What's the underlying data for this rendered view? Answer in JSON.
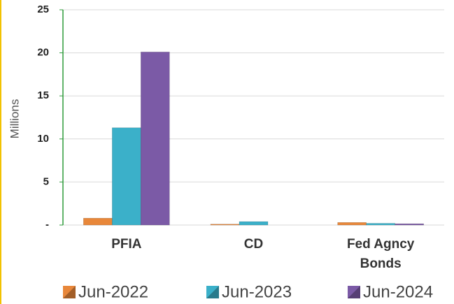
{
  "chart_data": {
    "type": "bar",
    "y_label": "Millions",
    "categories": [
      "PFIA",
      "CD",
      "Fed Agncy Bonds"
    ],
    "series": [
      {
        "name": "Jun-2022",
        "color": "#e8873a",
        "values": [
          0.8,
          0.1,
          0.3
        ]
      },
      {
        "name": "Jun-2023",
        "color": "#3bb0c9",
        "values": [
          11.3,
          0.4,
          0.2
        ]
      },
      {
        "name": "Jun-2024",
        "color": "#7b5aa6",
        "values": [
          20.1,
          0,
          0.15
        ]
      }
    ],
    "ylim": [
      0,
      25
    ],
    "yticks": [
      {
        "value": 0,
        "label": "-"
      },
      5,
      10,
      15,
      20,
      25
    ],
    "grid": true
  }
}
